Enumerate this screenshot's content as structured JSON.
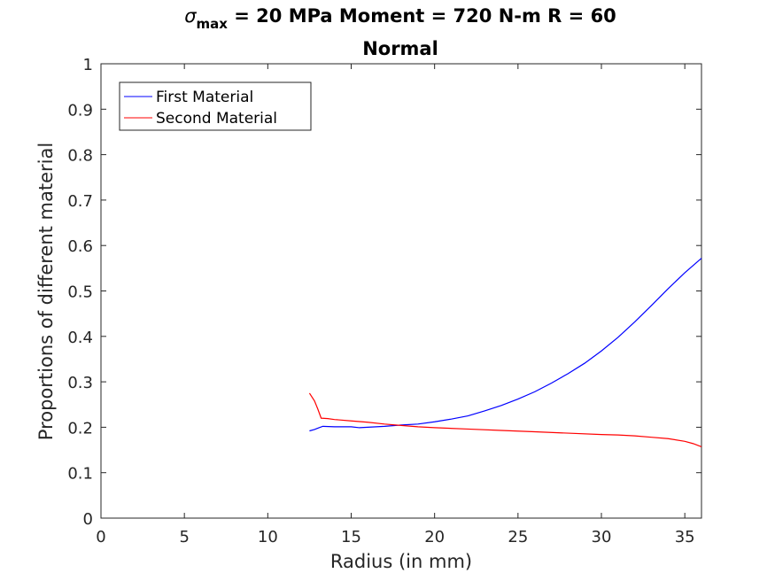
{
  "chart_data": {
    "type": "line",
    "title_line1": {
      "sigma": "σ",
      "subscript": "max",
      "rest": " = 20 MPa Moment = 720 N-m  R = 60"
    },
    "title_line2": "Normal",
    "xlabel": "Radius (in mm)",
    "ylabel": "Proportions of different material",
    "xlim": [
      0,
      36
    ],
    "ylim": [
      0,
      1
    ],
    "xticks": [
      0,
      5,
      10,
      15,
      20,
      25,
      30,
      35
    ],
    "yticks": [
      0,
      0.1,
      0.2,
      0.3,
      0.4,
      0.5,
      0.6,
      0.7,
      0.8,
      0.9,
      1
    ],
    "ytick_labels": [
      "0",
      "0.1",
      "0.2",
      "0.3",
      "0.4",
      "0.5",
      "0.6",
      "0.7",
      "0.8",
      "0.9",
      "1"
    ],
    "grid": false,
    "legend_position": "top-left",
    "series": [
      {
        "name": "First Material",
        "color": "#0000ff",
        "x": [
          12.5,
          12.8,
          13.0,
          13.3,
          14.0,
          15.0,
          15.5,
          16.0,
          17.0,
          18.0,
          19.0,
          20.0,
          21.0,
          22.0,
          23.0,
          24.0,
          25.0,
          26.0,
          27.0,
          28.0,
          29.0,
          30.0,
          31.0,
          32.0,
          33.0,
          34.0,
          35.0,
          36.0
        ],
        "y": [
          0.192,
          0.195,
          0.198,
          0.202,
          0.201,
          0.201,
          0.199,
          0.2,
          0.202,
          0.205,
          0.207,
          0.212,
          0.218,
          0.225,
          0.236,
          0.248,
          0.262,
          0.278,
          0.297,
          0.318,
          0.341,
          0.368,
          0.398,
          0.432,
          0.468,
          0.505,
          0.54,
          0.572
        ]
      },
      {
        "name": "Second Material",
        "color": "#ff0000",
        "x": [
          12.5,
          12.8,
          13.0,
          13.2,
          13.6,
          14.0,
          15.0,
          16.0,
          17.0,
          18.0,
          19.0,
          20.0,
          22.0,
          24.0,
          26.0,
          28.0,
          30.0,
          31.0,
          32.0,
          33.0,
          34.0,
          35.0,
          35.5,
          36.0
        ],
        "y": [
          0.275,
          0.258,
          0.24,
          0.22,
          0.219,
          0.217,
          0.214,
          0.211,
          0.207,
          0.204,
          0.201,
          0.199,
          0.196,
          0.193,
          0.19,
          0.187,
          0.184,
          0.183,
          0.181,
          0.178,
          0.175,
          0.169,
          0.164,
          0.157
        ]
      }
    ]
  }
}
